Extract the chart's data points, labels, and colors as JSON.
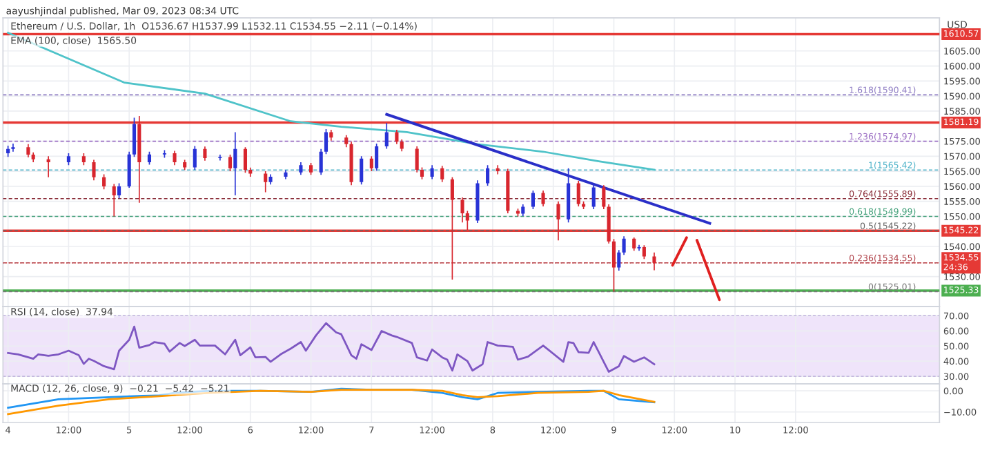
{
  "chart_data": [
    {
      "type": "candlestick",
      "title": "aayushjindal published, Mar 09, 2023 08:34 UTC",
      "subtitle": "Ethereum / U.S. Dollar, 1h  O1536.67 H1537.99 L1532.11 C1534.55 −2.11 (−0.14%)",
      "ylabel": "USD",
      "annotations": [
        "EMA (100, close)  1565.50"
      ],
      "x": [
        "2023-03-04T00:00",
        "2023-03-04T01:00",
        "2023-03-04T04:00",
        "2023-03-04T05:00",
        "2023-03-04T08:00",
        "2023-03-04T12:00",
        "2023-03-04T15:00",
        "2023-03-04T17:00",
        "2023-03-04T19:00",
        "2023-03-04T21:00",
        "2023-03-04T22:00",
        "2023-03-05T00:00",
        "2023-03-05T01:00",
        "2023-03-05T02:00",
        "2023-03-05T04:00",
        "2023-03-05T07:00",
        "2023-03-05T09:00",
        "2023-03-05T11:00",
        "2023-03-05T13:00",
        "2023-03-05T15:00",
        "2023-03-05T18:00",
        "2023-03-05T20:00",
        "2023-03-05T21:00",
        "2023-03-05T23:00",
        "2023-03-06T00:00",
        "2023-03-06T03:00",
        "2023-03-06T04:00",
        "2023-03-06T07:00",
        "2023-03-06T10:00",
        "2023-03-06T12:00",
        "2023-03-06T14:00",
        "2023-03-06T15:00",
        "2023-03-06T16:00",
        "2023-03-06T19:00",
        "2023-03-06T20:00",
        "2023-03-06T22:00",
        "2023-03-07T00:00",
        "2023-03-07T01:00",
        "2023-03-07T03:00",
        "2023-03-07T05:00",
        "2023-03-07T06:00",
        "2023-03-07T09:00",
        "2023-03-07T10:00",
        "2023-03-07T12:00",
        "2023-03-07T14:00",
        "2023-03-07T16:00",
        "2023-03-07T18:00",
        "2023-03-07T19:00",
        "2023-03-07T21:00",
        "2023-03-07T23:00",
        "2023-03-08T01:00",
        "2023-03-08T03:00",
        "2023-03-08T05:00",
        "2023-03-08T06:00",
        "2023-03-08T08:00",
        "2023-03-08T10:00",
        "2023-03-08T13:00",
        "2023-03-08T15:00",
        "2023-03-08T17:00",
        "2023-03-08T18:00",
        "2023-03-08T20:00",
        "2023-03-08T22:00",
        "2023-03-08T23:00",
        "2023-03-09T00:00",
        "2023-03-09T01:00",
        "2023-03-09T02:00",
        "2023-03-09T04:00",
        "2023-03-09T05:00",
        "2023-03-09T06:00",
        "2023-03-09T08:00"
      ],
      "ohlc": [
        [
          1571.0,
          1573.5,
          1569.8,
          1572.4
        ],
        [
          1572.4,
          1574.2,
          1571.5,
          1573.0
        ],
        [
          1573.0,
          1574.0,
          1569.6,
          1570.5
        ],
        [
          1570.5,
          1571.3,
          1568.0,
          1569.0
        ],
        [
          1569.0,
          1570.0,
          1563.0,
          1568.0
        ],
        [
          1568.0,
          1571.0,
          1567.0,
          1570.0
        ],
        [
          1570.0,
          1571.0,
          1567.0,
          1568.0
        ],
        [
          1568.0,
          1568.8,
          1562.0,
          1563.0
        ],
        [
          1563.0,
          1564.0,
          1559.0,
          1560.0
        ],
        [
          1560.0,
          1560.8,
          1550.0,
          1557.0
        ],
        [
          1557.0,
          1561.0,
          1556.0,
          1560.0
        ],
        [
          1560.0,
          1571.5,
          1559.5,
          1570.6
        ],
        [
          1570.6,
          1582.8,
          1569.8,
          1580.7
        ],
        [
          1580.7,
          1583.4,
          1554.5,
          1568.0
        ],
        [
          1568.0,
          1571.5,
          1567.2,
          1570.6
        ],
        [
          1570.6,
          1572.0,
          1569.5,
          1571.0
        ],
        [
          1571.0,
          1571.8,
          1567.0,
          1568.0
        ],
        [
          1568.0,
          1568.8,
          1565.4,
          1566.3
        ],
        [
          1566.3,
          1573.4,
          1565.5,
          1572.4
        ],
        [
          1572.4,
          1573.2,
          1568.5,
          1569.4
        ],
        [
          1569.4,
          1570.5,
          1568.6,
          1569.7
        ],
        [
          1569.7,
          1570.5,
          1565.0,
          1566.0
        ],
        [
          1566.0,
          1578.0,
          1557.0,
          1572.4
        ],
        [
          1572.4,
          1573.0,
          1564.5,
          1565.5
        ],
        [
          1565.5,
          1566.2,
          1563.2,
          1564.2
        ],
        [
          1564.2,
          1565.0,
          1558.0,
          1561.4
        ],
        [
          1561.4,
          1564.0,
          1560.6,
          1563.2
        ],
        [
          1563.2,
          1565.4,
          1562.4,
          1564.6
        ],
        [
          1564.6,
          1568.0,
          1563.8,
          1567.0
        ],
        [
          1567.0,
          1567.8,
          1563.8,
          1564.6
        ],
        [
          1564.6,
          1572.4,
          1563.8,
          1571.5
        ],
        [
          1571.5,
          1579.0,
          1570.7,
          1578.0
        ],
        [
          1578.0,
          1578.8,
          1575.2,
          1576.2
        ],
        [
          1576.2,
          1577.0,
          1573.0,
          1574.0
        ],
        [
          1574.0,
          1574.8,
          1560.4,
          1561.4
        ],
        [
          1561.4,
          1570.0,
          1560.6,
          1569.2
        ],
        [
          1569.2,
          1570.0,
          1565.0,
          1566.0
        ],
        [
          1566.0,
          1574.2,
          1565.2,
          1573.3
        ],
        [
          1573.3,
          1581.0,
          1572.5,
          1578.0
        ],
        [
          1578.0,
          1578.8,
          1574.0,
          1574.8
        ],
        [
          1574.8,
          1575.6,
          1571.6,
          1572.5
        ],
        [
          1572.5,
          1573.3,
          1564.6,
          1565.5
        ],
        [
          1565.5,
          1566.3,
          1562.3,
          1563.2
        ],
        [
          1563.2,
          1567.0,
          1562.4,
          1566.0
        ],
        [
          1566.0,
          1566.8,
          1561.4,
          1562.3
        ],
        [
          1562.3,
          1563.0,
          1529.0,
          1555.5
        ],
        [
          1555.5,
          1556.3,
          1548.0,
          1551.0
        ],
        [
          1551.0,
          1551.8,
          1545.5,
          1548.6
        ],
        [
          1548.6,
          1562.0,
          1547.8,
          1561.0
        ],
        [
          1561.0,
          1567.0,
          1560.2,
          1566.0
        ],
        [
          1566.0,
          1567.0,
          1564.0,
          1565.0
        ],
        [
          1565.0,
          1565.8,
          1551.0,
          1551.8
        ],
        [
          1551.8,
          1552.6,
          1550.0,
          1550.9
        ],
        [
          1550.9,
          1554.0,
          1550.1,
          1553.2
        ],
        [
          1553.2,
          1558.6,
          1552.4,
          1557.8
        ],
        [
          1557.8,
          1558.6,
          1553.3,
          1554.1
        ],
        [
          1554.1,
          1555.0,
          1542.0,
          1549.0
        ],
        [
          1549.0,
          1566.0,
          1548.0,
          1561.0
        ],
        [
          1561.0,
          1561.8,
          1553.3,
          1554.1
        ],
        [
          1554.1,
          1555.0,
          1552.4,
          1553.2
        ],
        [
          1553.2,
          1560.8,
          1552.4,
          1559.6
        ],
        [
          1559.6,
          1560.4,
          1552.4,
          1553.2
        ],
        [
          1553.2,
          1554.0,
          1541.0,
          1541.7
        ],
        [
          1541.7,
          1542.5,
          1525.01,
          1533.0
        ],
        [
          1533.0,
          1538.8,
          1532.0,
          1538.0
        ],
        [
          1538.0,
          1543.4,
          1537.2,
          1542.6
        ],
        [
          1542.6,
          1543.0,
          1538.6,
          1539.4
        ],
        [
          1539.4,
          1540.5,
          1538.6,
          1539.8
        ],
        [
          1539.8,
          1540.4,
          1535.8,
          1536.67
        ],
        [
          1536.67,
          1537.99,
          1532.11,
          1534.55
        ]
      ],
      "colors": [
        "#2833d6",
        "#2833d6",
        "#d8262e",
        "#d8262e",
        "#d8262e",
        "#2833d6",
        "#d8262e",
        "#d8262e",
        "#d8262e",
        "#d8262e",
        "#2833d6",
        "#2833d6",
        "#2833d6",
        "#d8262e",
        "#2833d6",
        "#2833d6",
        "#d8262e",
        "#d8262e",
        "#2833d6",
        "#d8262e",
        "#2833d6",
        "#d8262e",
        "#2833d6",
        "#d8262e",
        "#d8262e",
        "#d8262e",
        "#2833d6",
        "#2833d6",
        "#2833d6",
        "#d8262e",
        "#2833d6",
        "#2833d6",
        "#d8262e",
        "#d8262e",
        "#d8262e",
        "#2833d6",
        "#d8262e",
        "#2833d6",
        "#2833d6",
        "#d8262e",
        "#d8262e",
        "#d8262e",
        "#d8262e",
        "#2833d6",
        "#d8262e",
        "#d8262e",
        "#d8262e",
        "#d8262e",
        "#2833d6",
        "#2833d6",
        "#d8262e",
        "#d8262e",
        "#d8262e",
        "#2833d6",
        "#2833d6",
        "#d8262e",
        "#d8262e",
        "#2833d6",
        "#d8262e",
        "#d8262e",
        "#2833d6",
        "#d8262e",
        "#d8262e",
        "#d8262e",
        "#2833d6",
        "#2833d6",
        "#d8262e",
        "#2833d6",
        "#d8262e",
        "#d8262e"
      ],
      "series": [
        {
          "type": "line",
          "color": "#4fc3c9",
          "x": [
            "2023-03-04T00:00",
            "2023-03-04T23:00",
            "2023-03-05T15:00",
            "2023-03-06T08:00",
            "2023-03-06T18:00",
            "2023-03-07T07:00",
            "2023-03-07T21:00",
            "2023-03-08T10:00",
            "2023-03-08T21:00",
            "2023-03-09T08:00"
          ],
          "values": [
            1611.0,
            1594.5,
            1590.8,
            1581.6,
            1579.8,
            1578.0,
            1574.0,
            1571.5,
            1568.3,
            1565.5
          ]
        },
        {
          "type": "line",
          "color": "#2a2fc8",
          "x": [
            "2023-03-07T03:00",
            "2023-03-09T19:00"
          ],
          "values": [
            1583.9,
            1547.7
          ]
        }
      ],
      "ref_lines": [
        {
          "axis": "y",
          "value": 1610.57,
          "label": "1610.57",
          "color": "#e53935",
          "line_style": "solid"
        },
        {
          "axis": "y",
          "value": 1581.19,
          "label": "1581.19",
          "color": "#e53935",
          "line_style": "solid"
        },
        {
          "axis": "y",
          "value": 1545.22,
          "label": "1545.22",
          "color": "#e53935",
          "line_style": "solid"
        },
        {
          "axis": "y",
          "value": 1525.33,
          "label": "1525.33",
          "color": "#4caf50",
          "line_style": "solid"
        },
        {
          "axis": "y",
          "value": 1534.55,
          "label": "1534.55\n24:36",
          "color": "#e53935",
          "line_style": "dotted"
        },
        {
          "axis": "y",
          "value": 1590.41,
          "label": "1.618(1590.41)",
          "color": "#8e7cc3",
          "line_style": "dashed"
        },
        {
          "axis": "y",
          "value": 1574.97,
          "label": "1.236(1574.97)",
          "color": "#9c6fc4",
          "line_style": "dashed"
        },
        {
          "axis": "y",
          "value": 1565.42,
          "label": "1(1565.42)",
          "color": "#4fb3c9",
          "line_style": "dashed"
        },
        {
          "axis": "y",
          "value": 1555.89,
          "label": "0.764(1555.89)",
          "color": "#8b2f3a",
          "line_style": "dashed"
        },
        {
          "axis": "y",
          "value": 1549.99,
          "label": "0.618(1549.99)",
          "color": "#43a07a",
          "line_style": "dashed"
        },
        {
          "axis": "y",
          "value": 1545.22,
          "label": "0.5(1545.22)",
          "color": "#666666",
          "line_style": "dashed"
        },
        {
          "axis": "y",
          "value": 1534.55,
          "label": "0.236(1534.55)",
          "color": "#b0424a",
          "line_style": "dashed"
        },
        {
          "axis": "y",
          "value": 1525.01,
          "label": "0(1525.01)",
          "color": "#777777",
          "line_style": "dashed"
        }
      ],
      "xlim": [
        "2023-03-03T23:00",
        "2023-03-11T16:30"
      ],
      "ylim": [
        1520,
        1616
      ],
      "xticks": [
        "2023-03-04",
        "2023-03-04T12:00",
        "2023-03-05",
        "2023-03-05T12:00",
        "2023-03-06",
        "2023-03-06T12:00",
        "2023-03-07",
        "2023-03-07T12:00",
        "2023-03-08",
        "2023-03-08T12:00",
        "2023-03-09",
        "2023-03-09T12:00",
        "2023-03-10",
        "2023-03-10T12:00"
      ],
      "yticks": [
        {
          "value": 1530,
          "label": "1530.00"
        },
        {
          "value": 1540,
          "label": "1540.00"
        },
        {
          "value": 1550,
          "label": "1550.00"
        },
        {
          "value": 1555,
          "label": "1555.00"
        },
        {
          "value": 1560,
          "label": "1560.00"
        },
        {
          "value": 1565,
          "label": "1565.00"
        },
        {
          "value": 1570,
          "label": "1570.00"
        },
        {
          "value": 1575,
          "label": "1575.00"
        },
        {
          "value": 1585,
          "label": "1585.00"
        },
        {
          "value": 1590,
          "label": "1590.00"
        },
        {
          "value": 1595,
          "label": "1595.00"
        },
        {
          "value": 1600,
          "label": "1600.00"
        },
        {
          "value": 1605,
          "label": "1605.00"
        }
      ],
      "grid": true,
      "tick_labels": "y"
    },
    {
      "type": "line",
      "title": "RSI (14, close)  37.94",
      "series": [
        {
          "color": "#7e57c2",
          "x": [
            "2023-03-04T00:00",
            "2023-03-04T02:00",
            "2023-03-04T05:00",
            "2023-03-04T06:00",
            "2023-03-04T08:00",
            "2023-03-04T10:00",
            "2023-03-04T12:00",
            "2023-03-04T14:00",
            "2023-03-04T15:00",
            "2023-03-04T16:00",
            "2023-03-04T17:00",
            "2023-03-04T19:00",
            "2023-03-04T21:00",
            "2023-03-04T22:00",
            "2023-03-05T00:00",
            "2023-03-05T01:00",
            "2023-03-05T02:00",
            "2023-03-05T04:00",
            "2023-03-05T05:00",
            "2023-03-05T07:00",
            "2023-03-05T08:00",
            "2023-03-05T10:00",
            "2023-03-05T11:00",
            "2023-03-05T13:00",
            "2023-03-05T14:00",
            "2023-03-05T17:00",
            "2023-03-05T19:00",
            "2023-03-05T21:00",
            "2023-03-05T22:00",
            "2023-03-06T00:00",
            "2023-03-06T01:00",
            "2023-03-06T03:00",
            "2023-03-06T04:00",
            "2023-03-06T06:00",
            "2023-03-06T08:00",
            "2023-03-06T10:00",
            "2023-03-06T11:00",
            "2023-03-06T13:00",
            "2023-03-06T15:00",
            "2023-03-06T17:00",
            "2023-03-06T18:00",
            "2023-03-06T20:00",
            "2023-03-06T21:00",
            "2023-03-06T22:00",
            "2023-03-07T00:00",
            "2023-03-07T02:00",
            "2023-03-07T04:00",
            "2023-03-07T05:00",
            "2023-03-07T08:00",
            "2023-03-07T09:00",
            "2023-03-07T11:00",
            "2023-03-07T12:00",
            "2023-03-07T14:00",
            "2023-03-07T15:00",
            "2023-03-07T16:00",
            "2023-03-07T17:00",
            "2023-03-07T19:00",
            "2023-03-07T20:00",
            "2023-03-07T22:00",
            "2023-03-07T23:00",
            "2023-03-08T01:00",
            "2023-03-08T04:00",
            "2023-03-08T05:00",
            "2023-03-08T07:00",
            "2023-03-08T10:00",
            "2023-03-08T14:00",
            "2023-03-08T15:00",
            "2023-03-08T16:00",
            "2023-03-08T17:00",
            "2023-03-08T19:00",
            "2023-03-08T20:00",
            "2023-03-08T23:00",
            "2023-03-09T01:00",
            "2023-03-09T02:00",
            "2023-03-09T04:00",
            "2023-03-09T06:00",
            "2023-03-09T08:00"
          ],
          "values": [
            45.4,
            44.5,
            41.6,
            44.5,
            43.6,
            44.5,
            46.9,
            44.0,
            38.2,
            41.6,
            40.2,
            36.7,
            34.7,
            46.9,
            54.1,
            62.8,
            48.9,
            50.6,
            52.6,
            51.5,
            46.3,
            52.0,
            50.0,
            54.1,
            50.3,
            50.3,
            44.5,
            54.1,
            43.9,
            49.1,
            42.5,
            42.8,
            39.6,
            44.5,
            48.3,
            52.6,
            46.9,
            57.0,
            65.1,
            59.0,
            57.8,
            43.9,
            41.6,
            51.2,
            47.4,
            59.9,
            57.0,
            56.0,
            52.0,
            42.5,
            40.4,
            47.7,
            42.5,
            41.0,
            33.8,
            44.5,
            40.0,
            33.8,
            38.0,
            52.6,
            50.3,
            49.5,
            41.0,
            43.0,
            50.3,
            39.6,
            52.6,
            52.0,
            46.0,
            45.5,
            52.6,
            33.0,
            36.7,
            43.4,
            39.6,
            42.5,
            37.94
          ]
        }
      ],
      "bands": [
        {
          "axis": "y",
          "from": 30,
          "to": 70,
          "color": "#efe4fa"
        }
      ],
      "xlim": [
        "2023-03-03T23:00",
        "2023-03-11T16:30"
      ],
      "ylim": [
        25,
        76
      ],
      "xticks": [
        "2023-03-04",
        "2023-03-04T12:00",
        "2023-03-05",
        "2023-03-05T12:00",
        "2023-03-06",
        "2023-03-06T12:00",
        "2023-03-07",
        "2023-03-07T12:00",
        "2023-03-08",
        "2023-03-08T12:00",
        "2023-03-09",
        "2023-03-09T12:00",
        "2023-03-10",
        "2023-03-10T12:00"
      ],
      "yticks": [
        {
          "value": 30,
          "label": "30.00"
        },
        {
          "value": 40,
          "label": "40.00"
        },
        {
          "value": 50,
          "label": "50.00"
        },
        {
          "value": 60,
          "label": "60.00"
        },
        {
          "value": 70,
          "label": "70.00"
        }
      ],
      "grid": true,
      "tick_labels": "y"
    },
    {
      "type": "line",
      "title": "MACD (12, 26, close, 9)  −0.21  −5.42  −5.21",
      "series": [
        {
          "color": "#2196f3",
          "x": [
            "2023-03-04T00:00",
            "2023-03-04T10:00",
            "2023-03-04T20:00",
            "2023-03-05T06:00",
            "2023-03-05T09:00",
            "2023-03-05T16:00",
            "2023-03-06T02:00",
            "2023-03-06T12:00",
            "2023-03-06T18:00",
            "2023-03-07T00:00",
            "2023-03-07T08:00",
            "2023-03-07T14:00",
            "2023-03-07T18:00",
            "2023-03-07T21:00",
            "2023-03-08T01:00",
            "2023-03-08T09:00",
            "2023-03-08T19:00",
            "2023-03-08T22:00",
            "2023-03-09T01:00",
            "2023-03-09T08:00"
          ],
          "values": [
            -8,
            -4,
            -3,
            -2,
            -1,
            0,
            0,
            -0.5,
            1,
            0.5,
            0.5,
            -1,
            -3,
            -4,
            -1,
            -0.5,
            0,
            0,
            -4,
            -5.42
          ]
        },
        {
          "color": "#ff9800",
          "x": [
            "2023-03-04T00:00",
            "2023-03-04T10:00",
            "2023-03-04T20:00",
            "2023-03-05T06:00",
            "2023-03-05T09:00",
            "2023-03-05T16:00",
            "2023-03-06T02:00",
            "2023-03-06T12:00",
            "2023-03-06T18:00",
            "2023-03-07T00:00",
            "2023-03-07T08:00",
            "2023-03-07T14:00",
            "2023-03-07T18:00",
            "2023-03-07T21:00",
            "2023-03-08T01:00",
            "2023-03-08T09:00",
            "2023-03-08T19:00",
            "2023-03-08T22:00",
            "2023-03-09T01:00",
            "2023-03-09T08:00"
          ],
          "values": [
            -11,
            -7,
            -4,
            -2.5,
            -2,
            -1,
            0,
            -0.5,
            0.5,
            0.5,
            0.5,
            0,
            -2,
            -3,
            -2.5,
            -1,
            -0.5,
            0,
            -2,
            -5.21
          ]
        }
      ],
      "xlim": [
        "2023-03-03T23:00",
        "2023-03-11T16:30"
      ],
      "ylim": [
        -15,
        3.3
      ],
      "xticks": [
        {
          "value": "2023-03-04",
          "label": "4"
        },
        {
          "value": "2023-03-04T12:00",
          "label": "12:00"
        },
        {
          "value": "2023-03-05",
          "label": "5"
        },
        {
          "value": "2023-03-05T12:00",
          "label": "12:00"
        },
        {
          "value": "2023-03-06",
          "label": "6"
        },
        {
          "value": "2023-03-06T12:00",
          "label": "12:00"
        },
        {
          "value": "2023-03-07",
          "label": "7"
        },
        {
          "value": "2023-03-07T12:00",
          "label": "12:00"
        },
        {
          "value": "2023-03-08",
          "label": "8"
        },
        {
          "value": "2023-03-08T12:00",
          "label": "12:00"
        },
        {
          "value": "2023-03-09",
          "label": "9"
        },
        {
          "value": "2023-03-09T12:00",
          "label": "12:00"
        },
        {
          "value": "2023-03-10",
          "label": "10"
        },
        {
          "value": "2023-03-10T12:00",
          "label": "12:00"
        }
      ],
      "yticks": [
        {
          "value": -10,
          "label": "−10.00"
        },
        {
          "value": 0,
          "label": "0.00"
        }
      ],
      "grid": true
    }
  ]
}
